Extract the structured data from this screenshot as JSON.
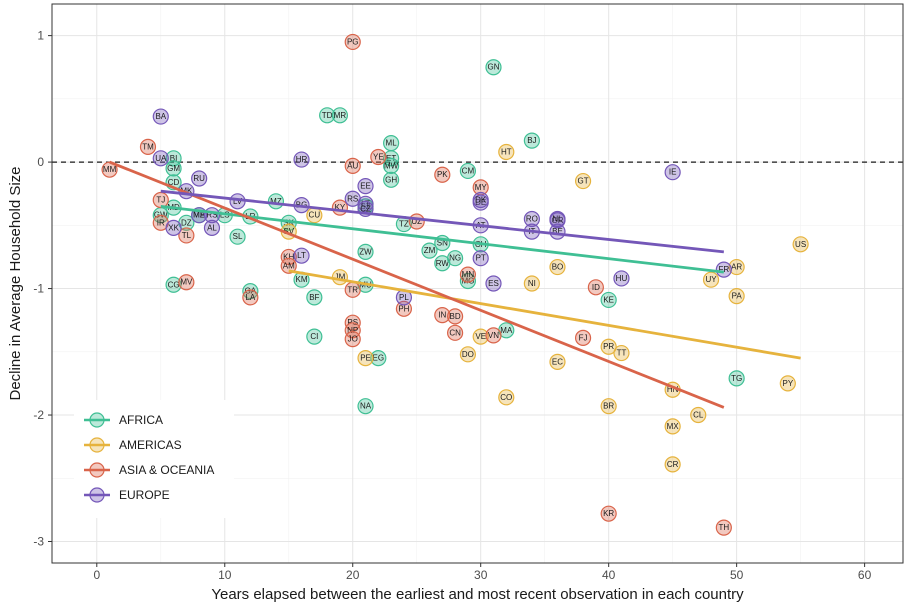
{
  "chart_data": {
    "type": "scatter",
    "xlabel": "Years elapsed between the earliest and most recent observation in each country",
    "ylabel": "Decline in Average Household Size",
    "xlim": [
      -3.5,
      63
    ],
    "ylim": [
      -3.17,
      1.25
    ],
    "xticks": [
      0,
      10,
      20,
      30,
      40,
      50,
      60
    ],
    "yticks": [
      -3,
      -2,
      -1,
      0,
      1
    ],
    "xtick_labels": [
      "0",
      "10",
      "20",
      "30",
      "40",
      "50",
      "60"
    ],
    "ytick_labels": [
      "-3",
      "-2",
      "-1",
      "0",
      "1"
    ],
    "grid": true,
    "reference_line": {
      "y": 0,
      "style": "dashed"
    },
    "legend": {
      "position": "bottom-left"
    },
    "series": [
      {
        "name": "AFRICA",
        "color": "#3fbf94",
        "trend": {
          "x1": 5,
          "y1": -0.35,
          "x2": 49,
          "y2": -0.87
        },
        "points": [
          {
            "label": "GN",
            "x": 31,
            "y": 0.75
          },
          {
            "label": "TD",
            "x": 18,
            "y": 0.37
          },
          {
            "label": "MR",
            "x": 19,
            "y": 0.37
          },
          {
            "label": "BJ",
            "x": 34,
            "y": 0.17
          },
          {
            "label": "ML",
            "x": 23,
            "y": 0.15
          },
          {
            "label": "BI",
            "x": 6,
            "y": 0.03
          },
          {
            "label": "ET",
            "x": 23,
            "y": 0.03
          },
          {
            "label": "GM",
            "x": 6,
            "y": -0.05
          },
          {
            "label": "MW",
            "x": 23,
            "y": -0.03
          },
          {
            "label": "CM",
            "x": 29,
            "y": -0.07
          },
          {
            "label": "GH",
            "x": 23,
            "y": -0.14
          },
          {
            "label": "CD",
            "x": 6,
            "y": -0.16
          },
          {
            "label": "SZ",
            "x": 21,
            "y": -0.35
          },
          {
            "label": "GW",
            "x": 5,
            "y": -0.42
          },
          {
            "label": "MD",
            "x": 6,
            "y": -0.36
          },
          {
            "label": "MA",
            "x": 8,
            "y": -0.42
          },
          {
            "label": "DZ",
            "x": 7,
            "y": -0.48
          },
          {
            "label": "LS",
            "x": 10,
            "y": -0.42
          },
          {
            "label": "LR",
            "x": 12,
            "y": -0.43
          },
          {
            "label": "MZ",
            "x": 14,
            "y": -0.31
          },
          {
            "label": "SL",
            "x": 11,
            "y": -0.59
          },
          {
            "label": "SK",
            "x": 15,
            "y": -0.48
          },
          {
            "label": "TZ",
            "x": 24,
            "y": -0.49
          },
          {
            "label": "ZW",
            "x": 21,
            "y": -0.71
          },
          {
            "label": "ZM",
            "x": 26,
            "y": -0.7
          },
          {
            "label": "SN",
            "x": 27,
            "y": -0.64
          },
          {
            "label": "RW",
            "x": 27,
            "y": -0.8
          },
          {
            "label": "NG",
            "x": 28,
            "y": -0.76
          },
          {
            "label": "CH",
            "x": 30,
            "y": -0.65
          },
          {
            "label": "KM",
            "x": 16,
            "y": -0.93
          },
          {
            "label": "MU",
            "x": 21,
            "y": -0.97
          },
          {
            "label": "BF",
            "x": 17,
            "y": -1.07
          },
          {
            "label": "CG",
            "x": 6,
            "y": -0.97
          },
          {
            "label": "GA",
            "x": 12,
            "y": -1.02
          },
          {
            "label": "MG",
            "x": 29,
            "y": -0.94
          },
          {
            "label": "KE",
            "x": 40,
            "y": -1.09
          },
          {
            "label": "CI",
            "x": 17,
            "y": -1.38
          },
          {
            "label": "EG",
            "x": 22,
            "y": -1.55
          },
          {
            "label": "MA",
            "x": 32,
            "y": -1.33
          },
          {
            "label": "NA",
            "x": 21,
            "y": -1.93
          },
          {
            "label": "TG",
            "x": 50,
            "y": -1.71
          }
        ]
      },
      {
        "name": "AMERICAS",
        "color": "#e6b33d",
        "trend": {
          "x1": 15,
          "y1": -0.86,
          "x2": 55,
          "y2": -1.55
        },
        "points": [
          {
            "label": "HT",
            "x": 32,
            "y": 0.08
          },
          {
            "label": "GT",
            "x": 38,
            "y": -0.15
          },
          {
            "label": "CU",
            "x": 17,
            "y": -0.42
          },
          {
            "label": "SV",
            "x": 15,
            "y": -0.55
          },
          {
            "label": "US",
            "x": 55,
            "y": -0.65
          },
          {
            "label": "BO",
            "x": 36,
            "y": -0.83
          },
          {
            "label": "JM",
            "x": 19,
            "y": -0.91
          },
          {
            "label": "NI",
            "x": 34,
            "y": -0.96
          },
          {
            "label": "UY",
            "x": 48,
            "y": -0.93
          },
          {
            "label": "AR",
            "x": 50,
            "y": -0.83
          },
          {
            "label": "PA",
            "x": 50,
            "y": -1.06
          },
          {
            "label": "VE",
            "x": 30,
            "y": -1.38
          },
          {
            "label": "PE",
            "x": 21,
            "y": -1.55
          },
          {
            "label": "DO",
            "x": 29,
            "y": -1.52
          },
          {
            "label": "EC",
            "x": 36,
            "y": -1.58
          },
          {
            "label": "PR",
            "x": 40,
            "y": -1.46
          },
          {
            "label": "TT",
            "x": 41,
            "y": -1.51
          },
          {
            "label": "CO",
            "x": 32,
            "y": -1.86
          },
          {
            "label": "HN",
            "x": 45,
            "y": -1.8
          },
          {
            "label": "BR",
            "x": 40,
            "y": -1.93
          },
          {
            "label": "CL",
            "x": 47,
            "y": -2.0
          },
          {
            "label": "MX",
            "x": 45,
            "y": -2.09
          },
          {
            "label": "PY",
            "x": 54,
            "y": -1.75
          },
          {
            "label": "CR",
            "x": 45,
            "y": -2.39
          }
        ]
      },
      {
        "name": "ASIA & OCEANIA",
        "color": "#d9644a",
        "trend": {
          "x1": 1,
          "y1": 0.0,
          "x2": 49,
          "y2": -1.94
        },
        "points": [
          {
            "label": "PG",
            "x": 20,
            "y": 0.95
          },
          {
            "label": "TM",
            "x": 4,
            "y": 0.12
          },
          {
            "label": "MM",
            "x": 1,
            "y": -0.06
          },
          {
            "label": "AU",
            "x": 20,
            "y": -0.03
          },
          {
            "label": "YE",
            "x": 22,
            "y": 0.04
          },
          {
            "label": "PK",
            "x": 27,
            "y": -0.1
          },
          {
            "label": "MY",
            "x": 30,
            "y": -0.2
          },
          {
            "label": "TJ",
            "x": 5,
            "y": -0.3
          },
          {
            "label": "IR",
            "x": 5,
            "y": -0.48
          },
          {
            "label": "TL",
            "x": 7,
            "y": -0.58
          },
          {
            "label": "KY",
            "x": 19,
            "y": -0.36
          },
          {
            "label": "UZ",
            "x": 25,
            "y": -0.47
          },
          {
            "label": "KH",
            "x": 15,
            "y": -0.75
          },
          {
            "label": "AM",
            "x": 15,
            "y": -0.82
          },
          {
            "label": "MV",
            "x": 7,
            "y": -0.95
          },
          {
            "label": "TR",
            "x": 20,
            "y": -1.01
          },
          {
            "label": "LA",
            "x": 12,
            "y": -1.07
          },
          {
            "label": "PH",
            "x": 24,
            "y": -1.16
          },
          {
            "label": "ID",
            "x": 39,
            "y": -0.99
          },
          {
            "label": "MN",
            "x": 29,
            "y": -0.89
          },
          {
            "label": "IN",
            "x": 27,
            "y": -1.21
          },
          {
            "label": "BD",
            "x": 28,
            "y": -1.22
          },
          {
            "label": "CN",
            "x": 28,
            "y": -1.35
          },
          {
            "label": "PS",
            "x": 20,
            "y": -1.27
          },
          {
            "label": "NP",
            "x": 20,
            "y": -1.33
          },
          {
            "label": "JO",
            "x": 20,
            "y": -1.4
          },
          {
            "label": "VN",
            "x": 31,
            "y": -1.37
          },
          {
            "label": "FJ",
            "x": 38,
            "y": -1.39
          },
          {
            "label": "KR",
            "x": 40,
            "y": -2.78
          },
          {
            "label": "TH",
            "x": 49,
            "y": -2.89
          }
        ]
      },
      {
        "name": "EUROPE",
        "color": "#7457b8",
        "trend": {
          "x1": 5,
          "y1": -0.23,
          "x2": 49,
          "y2": -0.71
        },
        "points": [
          {
            "label": "BA",
            "x": 5,
            "y": 0.36
          },
          {
            "label": "UA",
            "x": 5,
            "y": 0.03
          },
          {
            "label": "HR",
            "x": 16,
            "y": 0.02
          },
          {
            "label": "RU",
            "x": 8,
            "y": -0.13
          },
          {
            "label": "EE",
            "x": 21,
            "y": -0.19
          },
          {
            "label": "MK",
            "x": 7,
            "y": -0.23
          },
          {
            "label": "LV",
            "x": 11,
            "y": -0.31
          },
          {
            "label": "BG",
            "x": 16,
            "y": -0.34
          },
          {
            "label": "RS",
            "x": 20,
            "y": -0.29
          },
          {
            "label": "LT",
            "x": 21,
            "y": -0.33
          },
          {
            "label": "CZ",
            "x": 21,
            "y": -0.37
          },
          {
            "label": "DE",
            "x": 30,
            "y": -0.32
          },
          {
            "label": "DK",
            "x": 30,
            "y": -0.3
          },
          {
            "label": "ME",
            "x": 8,
            "y": -0.42
          },
          {
            "label": "RS",
            "x": 9,
            "y": -0.42
          },
          {
            "label": "XK",
            "x": 6,
            "y": -0.52
          },
          {
            "label": "AL",
            "x": 9,
            "y": -0.52
          },
          {
            "label": "RO",
            "x": 34,
            "y": -0.45
          },
          {
            "label": "GR",
            "x": 36,
            "y": -0.46
          },
          {
            "label": "NL",
            "x": 36,
            "y": -0.45
          },
          {
            "label": "IT",
            "x": 34,
            "y": -0.55
          },
          {
            "label": "BE",
            "x": 36,
            "y": -0.55
          },
          {
            "label": "AT",
            "x": 30,
            "y": -0.5
          },
          {
            "label": "LT",
            "x": 16,
            "y": -0.74
          },
          {
            "label": "PT",
            "x": 30,
            "y": -0.76
          },
          {
            "label": "ES",
            "x": 31,
            "y": -0.96
          },
          {
            "label": "PL",
            "x": 24,
            "y": -1.07
          },
          {
            "label": "HU",
            "x": 41,
            "y": -0.92
          },
          {
            "label": "FR",
            "x": 49,
            "y": -0.85
          },
          {
            "label": "IE",
            "x": 45,
            "y": -0.08
          }
        ]
      }
    ]
  }
}
